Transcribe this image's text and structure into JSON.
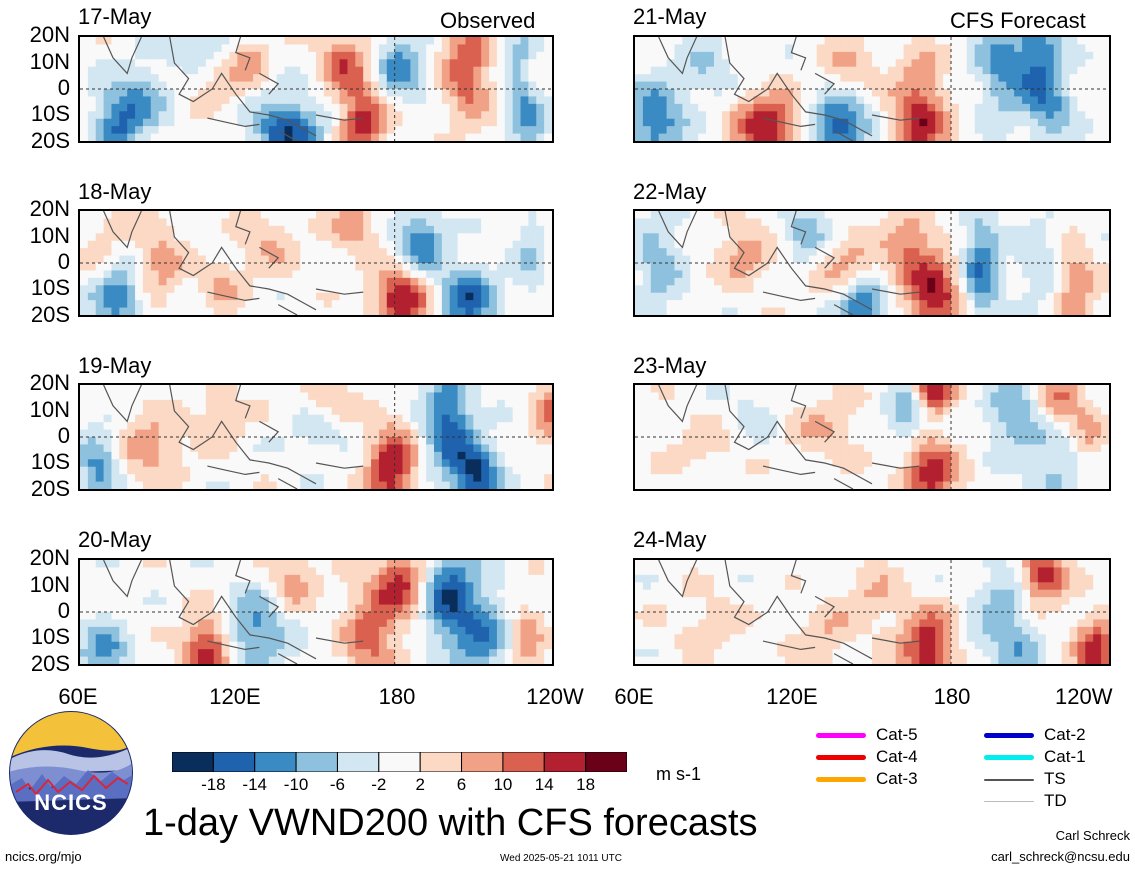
{
  "header": {
    "observed_tag": "Observed",
    "forecast_tag": "CFS Forecast"
  },
  "panels": [
    {
      "date": "17-May",
      "group": "observed"
    },
    {
      "date": "18-May",
      "group": "observed"
    },
    {
      "date": "19-May",
      "group": "observed"
    },
    {
      "date": "20-May",
      "group": "observed"
    },
    {
      "date": "21-May",
      "group": "forecast"
    },
    {
      "date": "22-May",
      "group": "forecast"
    },
    {
      "date": "23-May",
      "group": "forecast"
    },
    {
      "date": "24-May",
      "group": "forecast"
    }
  ],
  "lat_ticks": [
    "20N",
    "10N",
    "0",
    "10S",
    "20S"
  ],
  "lon_ticks_left": [
    "60E",
    "120E",
    "180",
    "120W"
  ],
  "lon_ticks_right": [
    "60E",
    "120E",
    "180",
    "120W"
  ],
  "colorbar": {
    "ticks": [
      "-18",
      "-14",
      "-10",
      "-6",
      "-2",
      "2",
      "6",
      "10",
      "14",
      "18"
    ],
    "units": "m s-1",
    "colors": [
      "#0a2e5c",
      "#1f62ad",
      "#3a8ac4",
      "#8ec1de",
      "#d3e7f2",
      "#f9f9f9",
      "#fbd9c4",
      "#f1a286",
      "#da6150",
      "#b3202f",
      "#6b0019"
    ]
  },
  "legend": {
    "col1": [
      {
        "label": "Cat-5",
        "color": "#ff00ff"
      },
      {
        "label": "Cat-4",
        "color": "#ee0000"
      },
      {
        "label": "Cat-3",
        "color": "#ffa500"
      }
    ],
    "col2": [
      {
        "label": "Cat-2",
        "color": "#0000cc"
      },
      {
        "label": "Cat-1",
        "color": "#00eeee"
      },
      {
        "label": "TS",
        "color": "#555555"
      },
      {
        "label": "TD",
        "color": "#bbbbbb"
      }
    ]
  },
  "logo": {
    "text": "NCICS"
  },
  "footer": {
    "title": "1-day VWND200 with CFS forecasts",
    "site": "ncics.org/mjo",
    "timestamp": "Wed 2025-05-21 1011 UTC",
    "author": "Carl Schreck",
    "email": "carl_schreck@ncsu.edu"
  }
}
